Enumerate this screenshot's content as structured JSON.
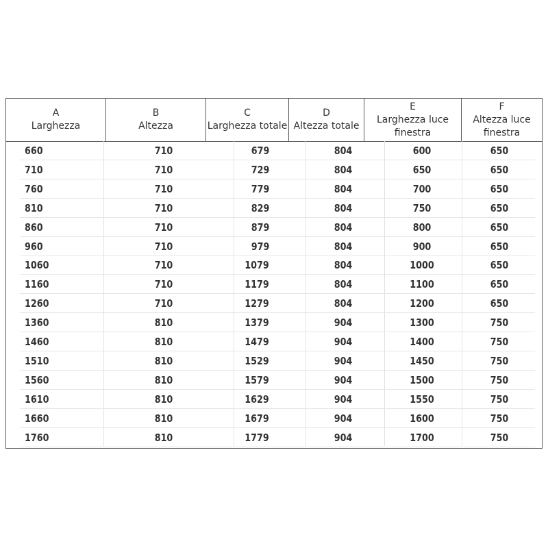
{
  "table": {
    "headers": [
      {
        "letter": "A",
        "label": "Larghezza"
      },
      {
        "letter": "B",
        "label": "Altezza"
      },
      {
        "letter": "C",
        "label": "Larghezza totale"
      },
      {
        "letter": "D",
        "label": "Altezza totale"
      },
      {
        "letter": "E",
        "label": "Larghezza luce finestra"
      },
      {
        "letter": "F",
        "label": "Altezza luce finestra"
      }
    ],
    "rows": [
      [
        "660",
        "710",
        "679",
        "804",
        "600",
        "650"
      ],
      [
        "710",
        "710",
        "729",
        "804",
        "650",
        "650"
      ],
      [
        "760",
        "710",
        "779",
        "804",
        "700",
        "650"
      ],
      [
        "810",
        "710",
        "829",
        "804",
        "750",
        "650"
      ],
      [
        "860",
        "710",
        "879",
        "804",
        "800",
        "650"
      ],
      [
        "960",
        "710",
        "979",
        "804",
        "900",
        "650"
      ],
      [
        "1060",
        "710",
        "1079",
        "804",
        "1000",
        "650"
      ],
      [
        "1160",
        "710",
        "1179",
        "804",
        "1100",
        "650"
      ],
      [
        "1260",
        "710",
        "1279",
        "804",
        "1200",
        "650"
      ],
      [
        "1360",
        "810",
        "1379",
        "904",
        "1300",
        "750"
      ],
      [
        "1460",
        "810",
        "1479",
        "904",
        "1400",
        "750"
      ],
      [
        "1510",
        "810",
        "1529",
        "904",
        "1450",
        "750"
      ],
      [
        "1560",
        "810",
        "1579",
        "904",
        "1500",
        "750"
      ],
      [
        "1610",
        "810",
        "1629",
        "904",
        "1550",
        "750"
      ],
      [
        "1660",
        "810",
        "1679",
        "904",
        "1600",
        "750"
      ],
      [
        "1760",
        "810",
        "1779",
        "904",
        "1700",
        "750"
      ]
    ]
  }
}
